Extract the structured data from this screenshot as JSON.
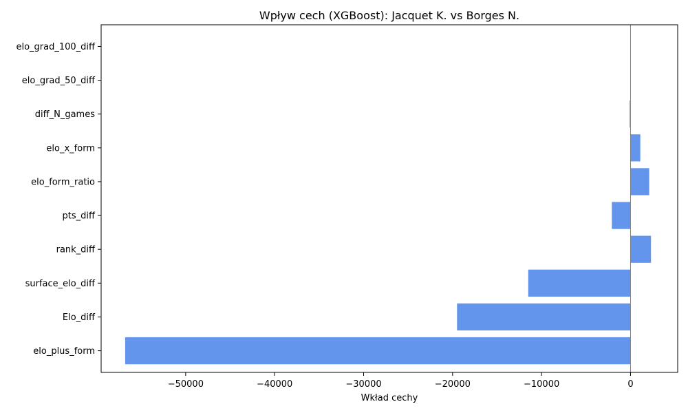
{
  "chart_data": {
    "type": "bar",
    "orientation": "horizontal",
    "title": "Wpływ cech (XGBoost): Jacquet K. vs Borges N.",
    "xlabel": "Wkład cechy",
    "ylabel": "",
    "categories": [
      "elo_plus_form",
      "Elo_diff",
      "surface_elo_diff",
      "rank_diff",
      "pts_diff",
      "elo_form_ratio",
      "elo_x_form",
      "diff_N_games",
      "elo_grad_50_diff",
      "elo_grad_100_diff"
    ],
    "values": [
      -56800,
      -19500,
      -11500,
      2300,
      -2100,
      2100,
      1100,
      -100,
      0,
      0
    ],
    "xlim": [
      -59500,
      5300
    ],
    "xticks": [
      -50000,
      -40000,
      -30000,
      -20000,
      -10000,
      0
    ],
    "xtick_labels": [
      "−50000",
      "−40000",
      "−30000",
      "−20000",
      "−10000",
      "0"
    ],
    "bar_color": "#6495ED",
    "zero_line_color": "#808080",
    "grid": false,
    "legend": "none"
  }
}
